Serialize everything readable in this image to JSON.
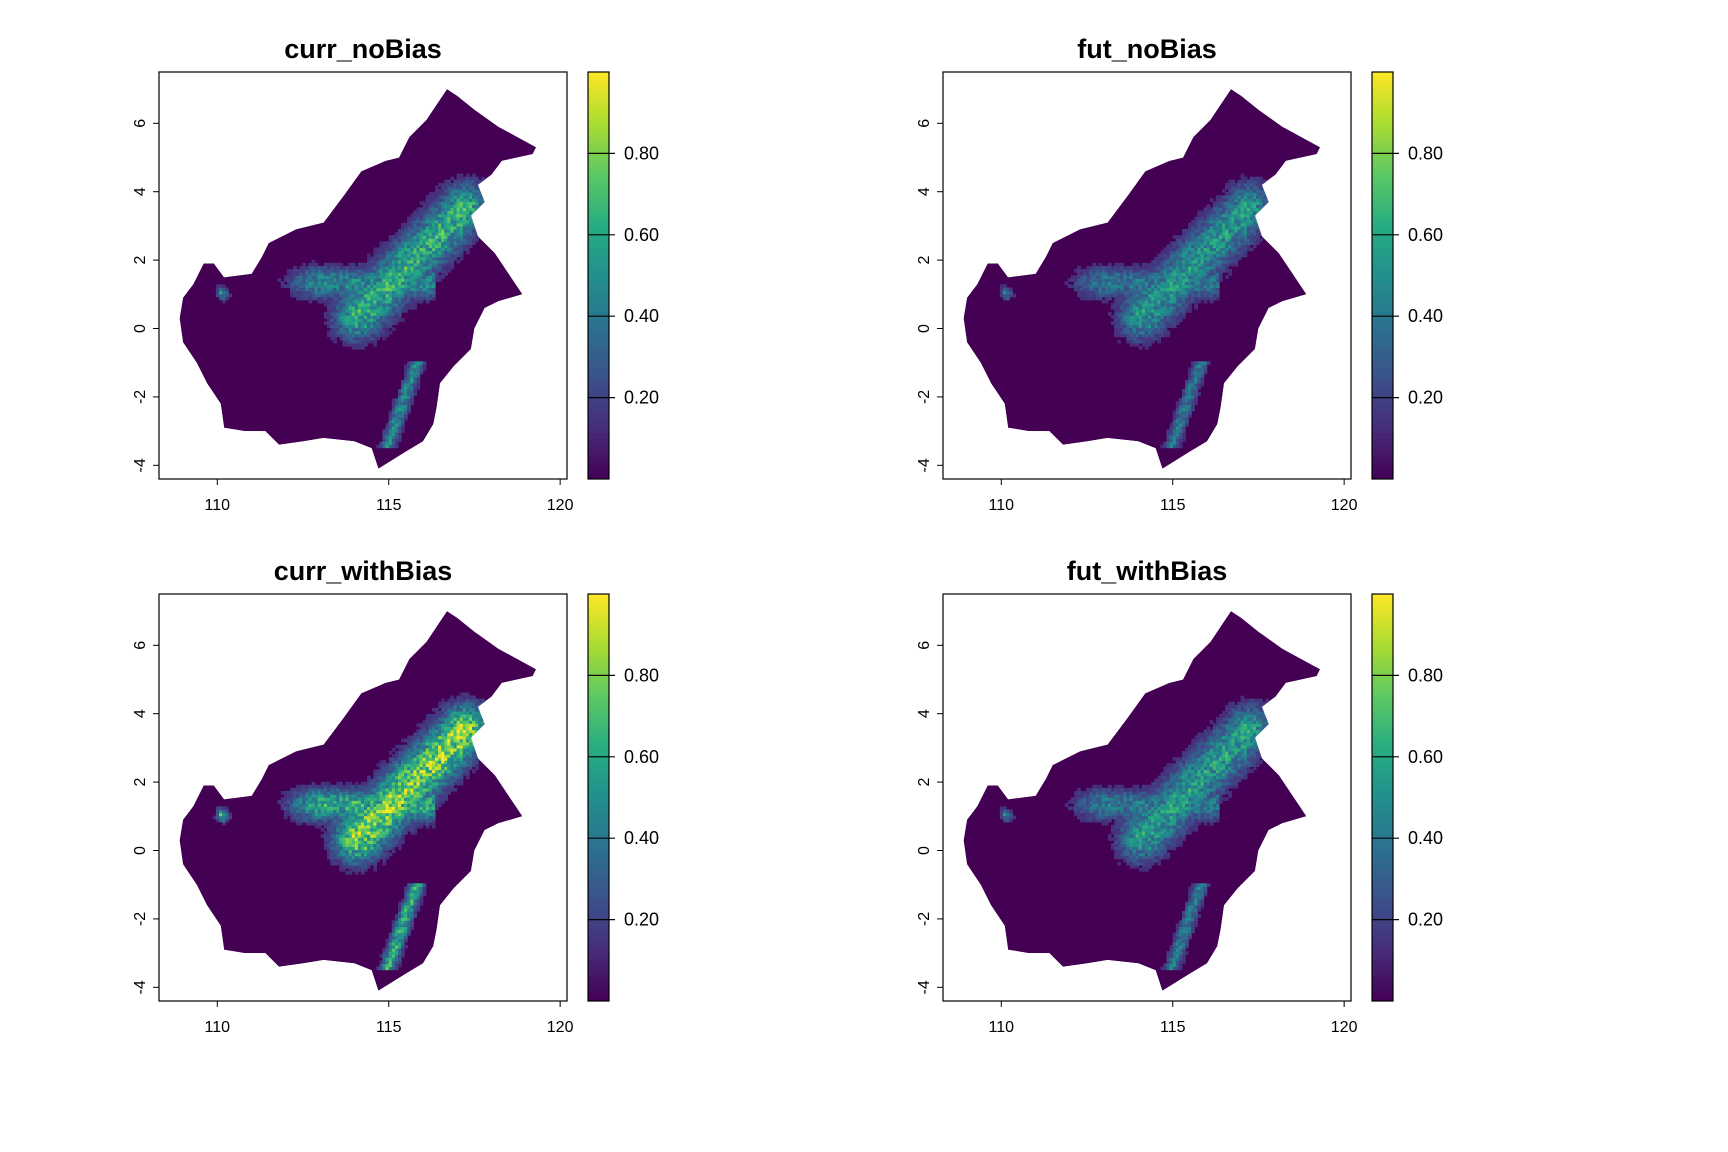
{
  "panels": [
    {
      "title": "curr_noBias",
      "intensity": 0.74
    },
    {
      "title": "fut_noBias",
      "intensity": 0.63
    },
    {
      "title": "curr_withBias",
      "intensity": 0.97
    },
    {
      "title": "fut_withBias",
      "intensity": 0.66
    }
  ],
  "chart_data": {
    "type": "heatmap",
    "xlim": [
      108.3,
      120.2
    ],
    "ylim": [
      -4.4,
      7.5
    ],
    "x_ticks": [
      110,
      115,
      120
    ],
    "y_ticks": [
      -4,
      -2,
      0,
      2,
      4,
      6
    ],
    "x_tick_labels": [
      "110",
      "115",
      "120"
    ],
    "y_tick_labels": [
      "-4",
      "-2",
      "0",
      "2",
      "4",
      "6"
    ],
    "legend": {
      "min": 0,
      "max": 1,
      "ticks": [
        0.2,
        0.4,
        0.6,
        0.8
      ],
      "tick_labels": [
        "0.20",
        "0.40",
        "0.60",
        "0.80"
      ],
      "placement": "right of each panel",
      "colormap": [
        "#440154",
        "#472c7a",
        "#3b518b",
        "#2c718e",
        "#21908d",
        "#27ad81",
        "#5cc863",
        "#aadc32",
        "#fde725"
      ]
    },
    "background_color": "#440154",
    "grid": false
  }
}
